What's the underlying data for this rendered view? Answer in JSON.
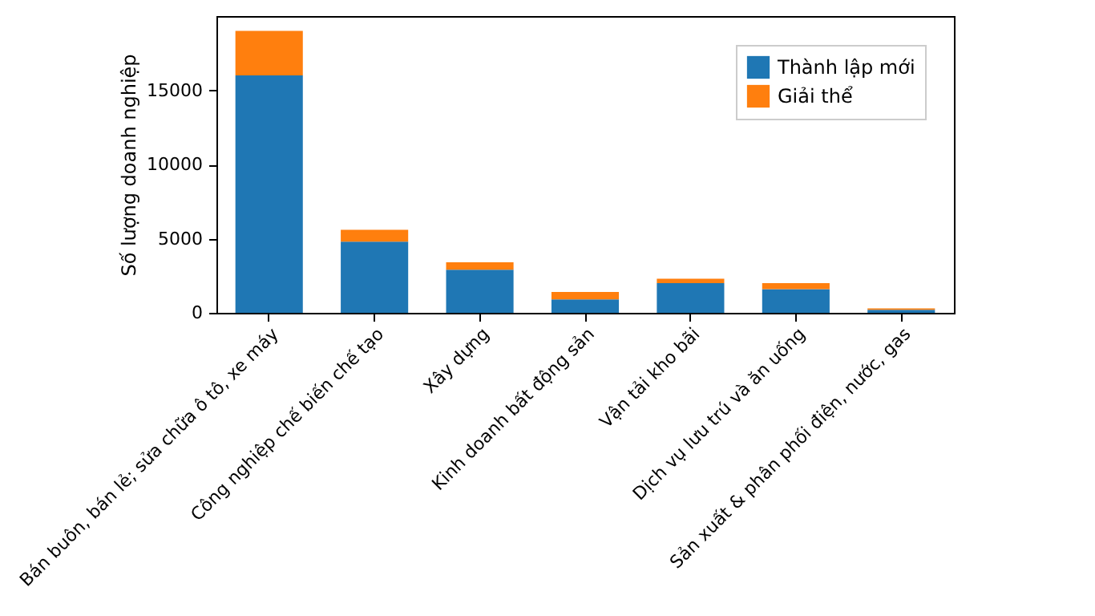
{
  "chart_data": {
    "type": "bar",
    "stacked": true,
    "ylabel": "Số lượng doanh nghiệp",
    "categories": [
      "Bán buôn, bán lẻ; sửa chữa ô tô, xe máy",
      "Công nghiệp chế biến chế tạo",
      "Xây dựng",
      "Kinh doanh bất động sản",
      "Vận tải kho bãi",
      "Dịch vụ lưu trú và ăn uống",
      "Sản xuất & phân phối điện, nước, gas"
    ],
    "series": [
      {
        "name": "Thành lập mới",
        "color": "#1f77b4",
        "values": [
          16000,
          4800,
          2900,
          900,
          2000,
          1600,
          200
        ]
      },
      {
        "name": "Giải thể",
        "color": "#ff7f0e",
        "values": [
          3000,
          800,
          500,
          500,
          300,
          400,
          100
        ]
      }
    ],
    "ylim": [
      0,
      20000
    ],
    "yticks": [
      0,
      5000,
      10000,
      15000
    ],
    "grid": false,
    "legend": "top right"
  }
}
